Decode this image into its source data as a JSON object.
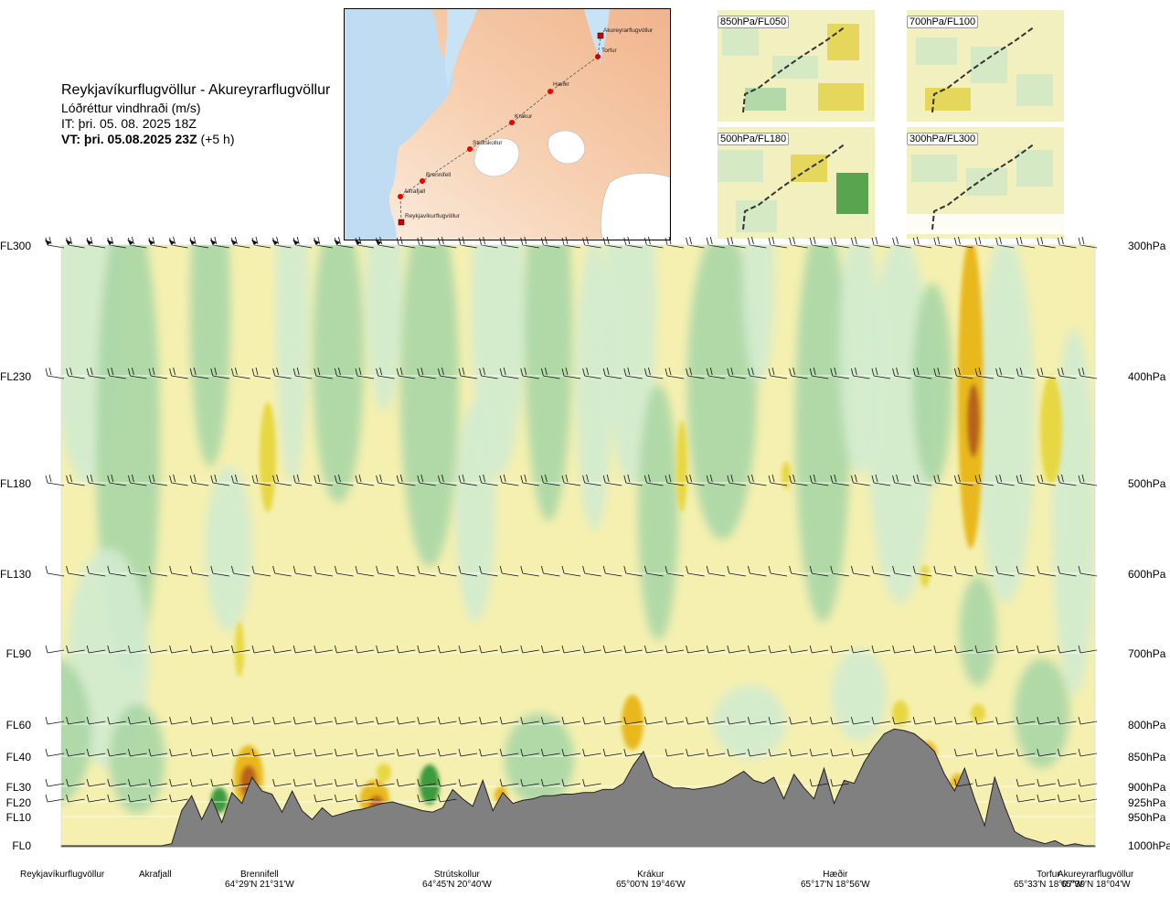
{
  "header": {
    "route": "Reykjavíkurflugvöllur - Akureyrarflugvöllur",
    "parameter": "Lóðréttur vindhraði (m/s)",
    "issue_time": "IT: þri. 05. 08. 2025 18Z",
    "valid_prefix": "VT: þri. 05.08.2025 23Z",
    "valid_suffix": " (+5 h)"
  },
  "route_map": {
    "waypoints": [
      "Akureyrarflugvöllur",
      "Torfur",
      "Hæðir",
      "Krákur",
      "Strútskollur",
      "Brennifell",
      "Akrafjall",
      "Reykjavíkurflugvöllur"
    ]
  },
  "level_panels": [
    {
      "label": "850hPa/FL050"
    },
    {
      "label": "700hPa/FL100"
    },
    {
      "label": "500hPa/FL180"
    },
    {
      "label": "300hPa/FL300"
    }
  ],
  "colors": {
    "strong_down": "#3c9a3c",
    "down": "#a9d6a6",
    "weak_down": "#d1ebcf",
    "neutral": "#f5f0b0",
    "weak_up": "#e7d743",
    "up": "#e8b81c",
    "strong_up": "#b8621e",
    "terrain": "#808080"
  },
  "chart_data": {
    "type": "heatmap",
    "title": "Reykjavíkurflugvöllur - Akureyrarflugvöllur",
    "variable": "Lóðréttur vindhraði (m/s)",
    "y_levels_left": [
      "FL300",
      "FL230",
      "FL180",
      "FL130",
      "FL90",
      "FL60",
      "FL40",
      "FL30",
      "FL20",
      "FL10",
      "FL0"
    ],
    "y_levels_right": [
      "300hPa",
      "400hPa",
      "500hPa",
      "600hPa",
      "700hPa",
      "800hPa",
      "850hPa",
      "900hPa",
      "925hPa",
      "950hPa",
      "1000hPa"
    ],
    "x_stations": [
      {
        "name": "Reykjavíkurflugvöllur",
        "coord": ""
      },
      {
        "name": "Akrafjall",
        "coord": ""
      },
      {
        "name": "Brennifell",
        "coord": "64°29'N 21°31'W"
      },
      {
        "name": "Strútskollur",
        "coord": "64°45'N 20°40'W"
      },
      {
        "name": "Krákur",
        "coord": "65°00'N 19°46'W"
      },
      {
        "name": "Hæðir",
        "coord": "65°17'N 18°56'W"
      },
      {
        "name": "Torfur",
        "coord": "65°33'N 18°07'W"
      },
      {
        "name": "Akureyrarflugvöllur",
        "coord": "65°39'N 18°04'W"
      }
    ],
    "terrain_profile_ft": [
      0,
      0,
      0,
      0,
      0,
      0,
      0,
      0,
      0,
      0,
      0,
      100,
      1400,
      2400,
      900,
      2200,
      800,
      2600,
      1900,
      3300,
      2700,
      2500,
      1300,
      2700,
      1400,
      900,
      1600,
      1000,
      1200,
      1400,
      1500,
      1700,
      1900,
      2000,
      1800,
      1600,
      1400,
      1300,
      1600,
      2800,
      2200,
      1700,
      3200,
      1400,
      2600,
      1900,
      2100,
      2200,
      2400,
      2400,
      2500,
      2500,
      2600,
      2600,
      2800,
      2800,
      3100,
      3700,
      4300,
      3300,
      3100,
      2900,
      2900,
      2800,
      2900,
      3000,
      3100,
      3300,
      3500,
      3200,
      3100,
      3300,
      2200,
      3400,
      2900,
      2200,
      3600,
      1900,
      3200,
      3100,
      3800,
      4600,
      5400,
      5700,
      5600,
      5400,
      4900,
      4300,
      3400,
      2700,
      3600,
      2200,
      700,
      3300,
      1700,
      500,
      300,
      200,
      100,
      200,
      0,
      100,
      0,
      0
    ],
    "wind_barb_levels": [
      "FL300",
      "FL230",
      "FL180",
      "FL130",
      "FL90",
      "FL60",
      "FL40",
      "FL30",
      "FL20"
    ]
  }
}
